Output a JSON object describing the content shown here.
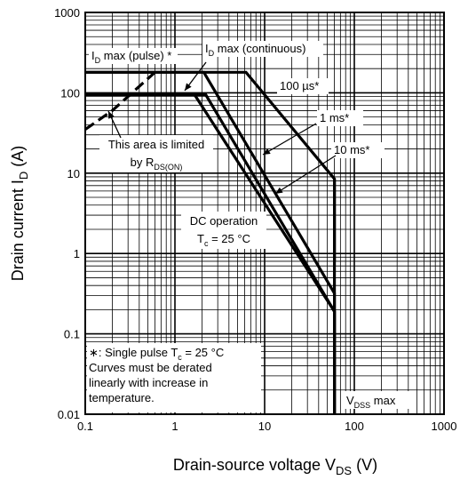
{
  "chart_data": {
    "type": "line",
    "title": "",
    "x_axis": {
      "label_main": "Drain-source voltage  V",
      "label_sub": "DS",
      "label_unit": "  (V)",
      "scale": "log",
      "range": [
        0.1,
        1000
      ],
      "tick_labels": [
        "0.1",
        "1",
        "10",
        "100",
        "1000"
      ]
    },
    "y_axis": {
      "label_main": "Drain current  I",
      "label_sub": "D",
      "label_unit": "  (A)",
      "scale": "log",
      "range": [
        0.01,
        1000
      ],
      "tick_labels": [
        "0.01",
        "0.1",
        "1",
        "10",
        "100",
        "1000"
      ]
    },
    "grid": true,
    "series": [
      {
        "name": "100 µs*",
        "points": [
          [
            0.1,
            180
          ],
          [
            6.2,
            180
          ],
          [
            60,
            8.5
          ],
          [
            60,
            0.8
          ]
        ]
      },
      {
        "name": "1 ms*",
        "points": [
          [
            0.1,
            180
          ],
          [
            2.1,
            180
          ],
          [
            60,
            0.32
          ],
          [
            60,
            0.01
          ]
        ]
      },
      {
        "name": "10 ms*",
        "points": [
          [
            0.1,
            95
          ],
          [
            2.2,
            95
          ],
          [
            60,
            0.19
          ],
          [
            60,
            0.01
          ]
        ]
      },
      {
        "name": "DC operation",
        "points": [
          [
            0.1,
            95
          ],
          [
            1.65,
            95
          ],
          [
            60,
            0.19
          ],
          [
            60,
            0.01
          ]
        ]
      },
      {
        "name": "RDS(ON) limit",
        "style": "dashed",
        "points": [
          [
            0.1,
            35
          ],
          [
            0.2,
            60
          ],
          [
            0.4,
            120
          ],
          [
            0.6,
            180
          ]
        ]
      },
      {
        "name": "VDSS max",
        "points": [
          [
            60,
            0.01
          ],
          [
            60,
            8.5
          ]
        ]
      }
    ],
    "annotations": {
      "id_pulse_main": "I",
      "id_pulse_sub": "D",
      "id_pulse_rest": " max (pulse) *",
      "id_cont_main": "I",
      "id_cont_sub": "D",
      "id_cont_rest": " max (continuous)",
      "us100": "100 µs*",
      "ms1": "1 ms*",
      "ms10": "10 ms*",
      "area_line1": "This area is limited",
      "area_line2_main": "by R",
      "area_line2_sub": "DS(ON)",
      "dc_line1": "DC operation",
      "dc_line2_main": "T",
      "dc_line2_sub": "c",
      "dc_line2_rest": " = 25 °C",
      "vdss_main": "V",
      "vdss_sub": "DSS",
      "vdss_rest": " max",
      "note_line1_main": "∗: Single pulse T",
      "note_line1_sub": "c",
      "note_line1_rest": " = 25 °C",
      "note_line2": "Curves must be derated",
      "note_line3": "linearly with increase in",
      "note_line4": "temperature."
    }
  }
}
